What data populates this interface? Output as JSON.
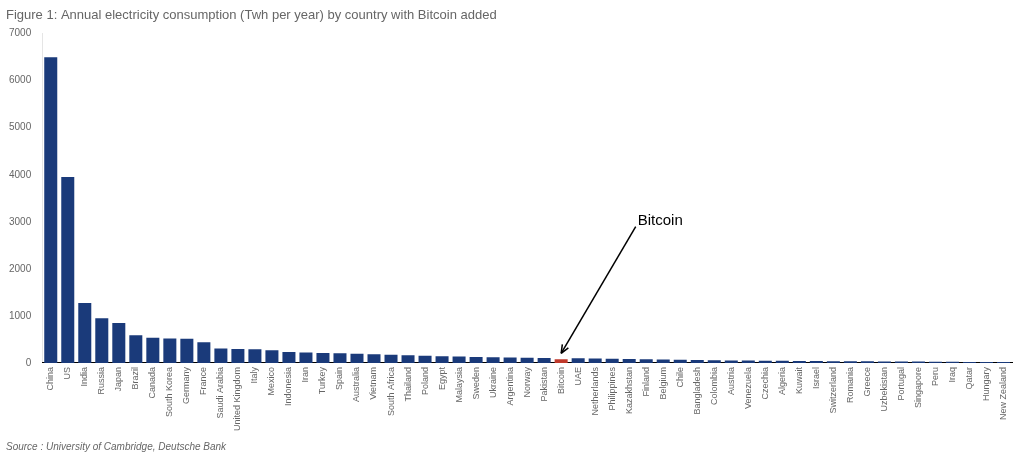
{
  "chart_data": {
    "type": "bar",
    "title": "Figure 1: Annual electricity consumption (Twh per year) by country with Bitcoin added",
    "source": "Source : University of Cambridge, Deutsche Bank",
    "categories": [
      "China",
      "US",
      "India",
      "Russia",
      "Japan",
      "Brazil",
      "Canada",
      "South Korea",
      "Germany",
      "France",
      "Saudi Arabia",
      "United Kingdom",
      "Italy",
      "Mexico",
      "Indonesia",
      "Iran",
      "Turkey",
      "Spain",
      "Australia",
      "Vietnam",
      "South Africa",
      "Thailand",
      "Poland",
      "Egypt",
      "Malaysia",
      "Sweden",
      "Ukraine",
      "Argentina",
      "Norway",
      "Pakistan",
      "Bitcoin",
      "UAE",
      "Netherlands",
      "Philippines",
      "Kazakhstan",
      "Finland",
      "Belgium",
      "Chile",
      "Bangladesh",
      "Colombia",
      "Austria",
      "Venezuela",
      "Czechia",
      "Algeria",
      "Kuwait",
      "Israel",
      "Switzerland",
      "Romania",
      "Greece",
      "Uzbekistan",
      "Portugal",
      "Singapore",
      "Peru",
      "Iraq",
      "Qatar",
      "Hungary",
      "New Zealand"
    ],
    "values": [
      6500,
      3950,
      1275,
      950,
      850,
      590,
      535,
      520,
      515,
      440,
      310,
      295,
      290,
      270,
      235,
      220,
      210,
      205,
      195,
      185,
      175,
      165,
      155,
      145,
      135,
      125,
      120,
      115,
      110,
      105,
      77,
      100,
      95,
      90,
      85,
      80,
      75,
      70,
      65,
      60,
      55,
      50,
      47,
      45,
      43,
      41,
      39,
      37,
      35,
      33,
      31,
      29,
      27,
      25,
      23,
      21,
      19
    ],
    "colors": [
      "#1a3a7a",
      "#1a3a7a",
      "#1a3a7a",
      "#1a3a7a",
      "#1a3a7a",
      "#1a3a7a",
      "#1a3a7a",
      "#1a3a7a",
      "#1a3a7a",
      "#1a3a7a",
      "#1a3a7a",
      "#1a3a7a",
      "#1a3a7a",
      "#1a3a7a",
      "#1a3a7a",
      "#1a3a7a",
      "#1a3a7a",
      "#1a3a7a",
      "#1a3a7a",
      "#1a3a7a",
      "#1a3a7a",
      "#1a3a7a",
      "#1a3a7a",
      "#1a3a7a",
      "#1a3a7a",
      "#1a3a7a",
      "#1a3a7a",
      "#1a3a7a",
      "#1a3a7a",
      "#1a3a7a",
      "#c0392b",
      "#1a3a7a",
      "#1a3a7a",
      "#1a3a7a",
      "#1a3a7a",
      "#1a3a7a",
      "#1a3a7a",
      "#1a3a7a",
      "#1a3a7a",
      "#1a3a7a",
      "#1a3a7a",
      "#1a3a7a",
      "#1a3a7a",
      "#1a3a7a",
      "#1a3a7a",
      "#1a3a7a",
      "#1a3a7a",
      "#1a3a7a",
      "#1a3a7a",
      "#1a3a7a",
      "#1a3a7a",
      "#1a3a7a",
      "#1a3a7a",
      "#1a3a7a",
      "#1a3a7a",
      "#1a3a7a",
      "#1a3a7a"
    ],
    "annotations": [
      {
        "text": "Bitcoin",
        "category": "Bitcoin"
      }
    ],
    "ylim": [
      0,
      7000
    ],
    "yticks": [
      0,
      1000,
      2000,
      3000,
      4000,
      5000,
      6000,
      7000
    ],
    "grid": false,
    "legend": null
  }
}
